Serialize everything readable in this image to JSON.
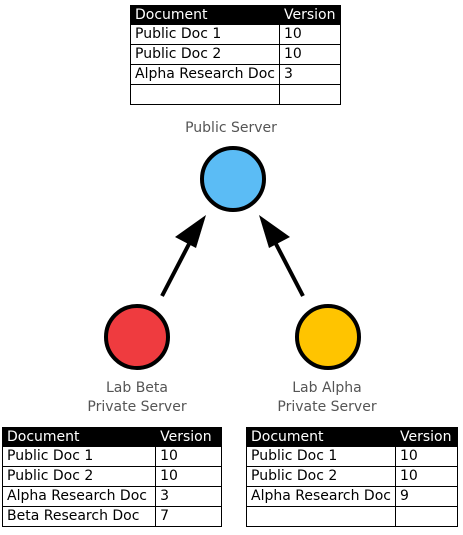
{
  "headers": {
    "document": "Document",
    "version": "Version"
  },
  "servers": {
    "public": {
      "label": "Public Server",
      "color": "#5bbcf5",
      "rows": [
        {
          "doc": "Public Doc 1",
          "version": "10"
        },
        {
          "doc": "Public Doc 2",
          "version": "10"
        },
        {
          "doc": "Alpha Research Doc",
          "version": "3"
        },
        {
          "doc": "",
          "version": ""
        }
      ]
    },
    "beta": {
      "label_line1": "Lab Beta",
      "label_line2": "Private Server",
      "color": "#ef3b3f",
      "rows": [
        {
          "doc": "Public Doc 1",
          "version": "10"
        },
        {
          "doc": "Public Doc 2",
          "version": "10"
        },
        {
          "doc": "Alpha Research Doc",
          "version": "3"
        },
        {
          "doc": "Beta Research Doc",
          "version": "7"
        }
      ]
    },
    "alpha": {
      "label_line1": "Lab Alpha",
      "label_line2": "Private Server",
      "color": "#ffc400",
      "rows": [
        {
          "doc": "Public Doc 1",
          "version": "10"
        },
        {
          "doc": "Public Doc 2",
          "version": "10"
        },
        {
          "doc": "Alpha Research Doc",
          "version": "9"
        },
        {
          "doc": "",
          "version": ""
        }
      ]
    }
  }
}
